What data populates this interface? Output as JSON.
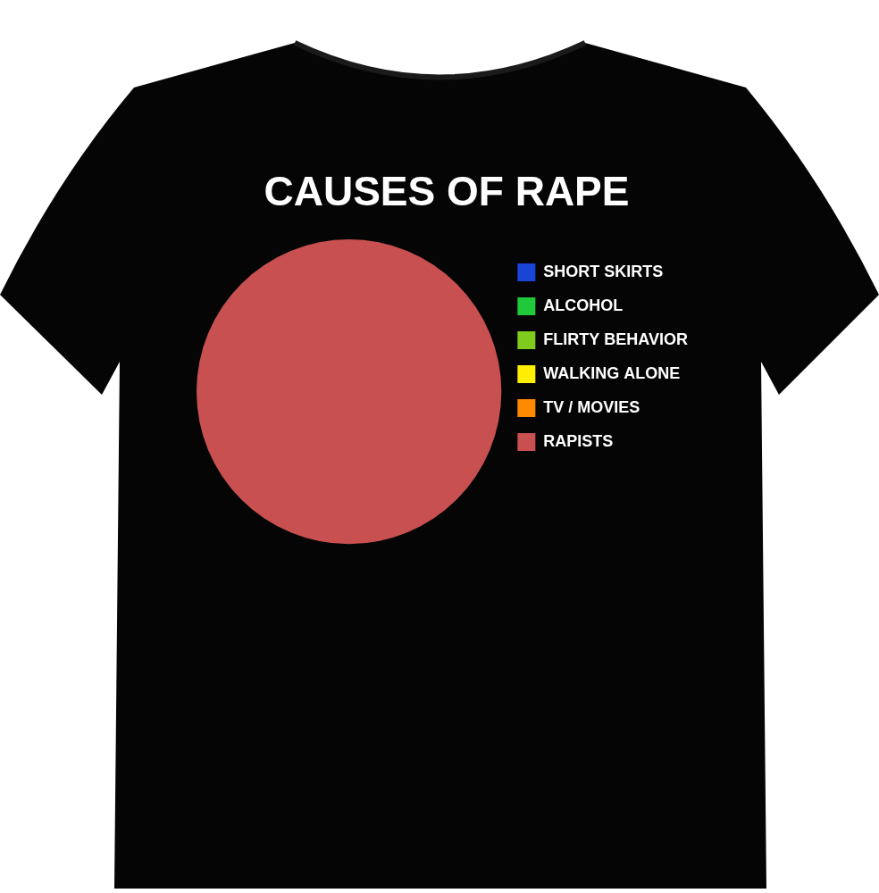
{
  "chart_data": {
    "type": "pie",
    "title": "CAUSES OF RAPE",
    "categories": [
      "SHORT SKIRTS",
      "ALCOHOL",
      "FLIRTY BEHAVIOR",
      "WALKING ALONE",
      "TV / MOVIES",
      "RAPISTS"
    ],
    "values": [
      0,
      0,
      0,
      0,
      0,
      100
    ],
    "colors": [
      "#1a44d6",
      "#1fc93a",
      "#7fcc1f",
      "#ffee00",
      "#ff8a00",
      "#c85050"
    ],
    "legend": "right"
  }
}
